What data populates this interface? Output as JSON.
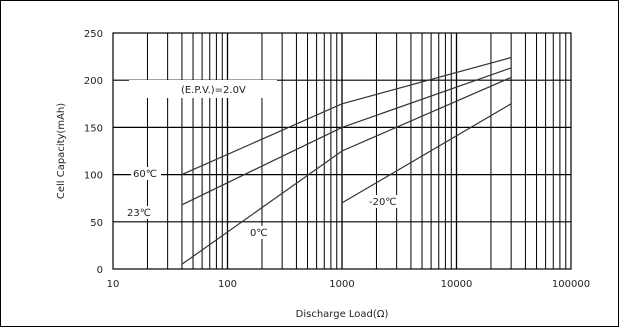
{
  "chart_data": {
    "type": "line",
    "xlabel": "Discharge Load(Ω)",
    "ylabel": "Cell Capacity(mAh)",
    "x_scale": "log",
    "xlim": [
      10,
      100000
    ],
    "ylim": [
      0,
      250
    ],
    "x_ticks": [
      "10",
      "100",
      "1000",
      "10000",
      "100000"
    ],
    "y_ticks": [
      "0",
      "50",
      "100",
      "150",
      "200",
      "250"
    ],
    "grid": true,
    "annotations": [
      "(E.P.V.)=2.0V"
    ],
    "series": [
      {
        "name": "60℃",
        "x": [
          40,
          1000,
          30000
        ],
        "y": [
          100,
          175,
          224
        ]
      },
      {
        "name": "23℃",
        "x": [
          40,
          1000,
          30000
        ],
        "y": [
          68,
          150,
          213
        ]
      },
      {
        "name": "0℃",
        "x": [
          40,
          1000,
          30000
        ],
        "y": [
          5,
          125,
          203
        ]
      },
      {
        "name": "-20℃",
        "x": [
          1000,
          30000
        ],
        "y": [
          70,
          175
        ]
      }
    ],
    "colors": {
      "line": "#333333",
      "grid": "#000000",
      "frame": "#000000"
    }
  }
}
